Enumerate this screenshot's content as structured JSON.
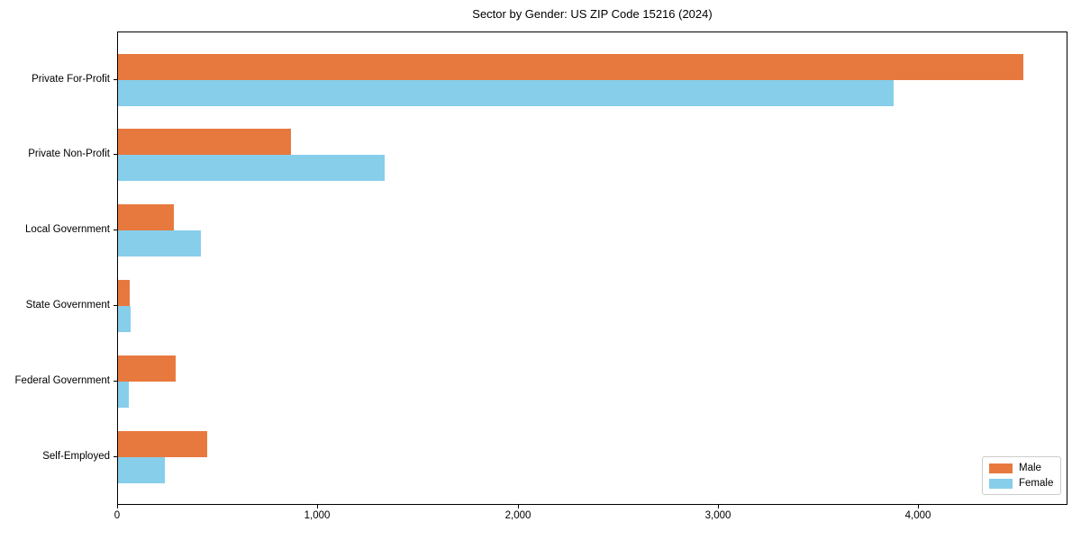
{
  "title": "Sector by Gender: US ZIP Code 15216 (2024)",
  "colors": {
    "male": "#e8793e",
    "female": "#87ceeb",
    "axis": "#000000",
    "legend_border": "#cccccc",
    "background": "#ffffff"
  },
  "legend": {
    "position": "lower right",
    "items": [
      {
        "label": "Male",
        "color": "#e8793e"
      },
      {
        "label": "Female",
        "color": "#87ceeb"
      }
    ]
  },
  "chart_data": {
    "type": "bar",
    "orientation": "horizontal",
    "title": "Sector by Gender: US ZIP Code 15216 (2024)",
    "xlabel": "",
    "ylabel": "",
    "categories": [
      "Private For-Profit",
      "Private Non-Profit",
      "Local Government",
      "State Government",
      "Federal Government",
      "Self-Employed"
    ],
    "series": [
      {
        "name": "Male",
        "color": "#e8793e",
        "values": [
          4520,
          865,
          280,
          60,
          290,
          445
        ]
      },
      {
        "name": "Female",
        "color": "#87ceeb",
        "values": [
          3875,
          1330,
          415,
          65,
          55,
          235
        ]
      }
    ],
    "xlim": [
      0,
      4746
    ],
    "xticks": [
      0,
      1000,
      2000,
      3000,
      4000
    ],
    "xtick_labels": [
      "0",
      "1,000",
      "2,000",
      "3,000",
      "4,000"
    ],
    "grid": false,
    "legend_position": "lower right"
  }
}
